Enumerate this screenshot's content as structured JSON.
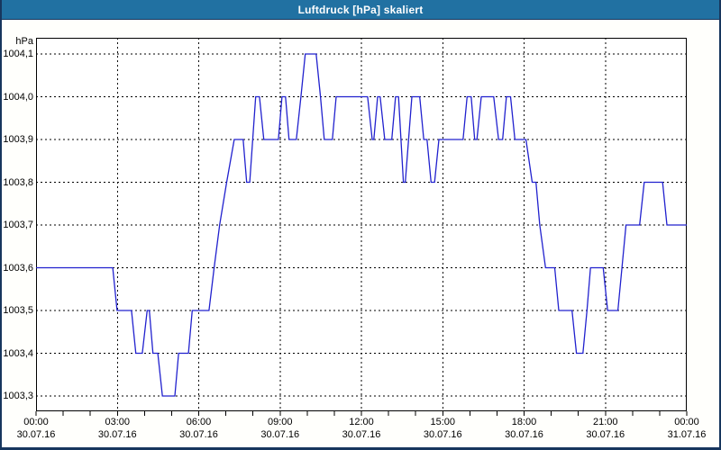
{
  "window": {
    "title": "Luftdruck [hPa] skaliert"
  },
  "colors": {
    "titlebar_bg": "#2171a2",
    "titlebar_text": "#ffffff",
    "window_border": "#17365d",
    "background": "#fffffc",
    "plot_background": "#ffffff",
    "plot_border": "#000000",
    "grid": "#000000",
    "line": "#2121ce",
    "label_text": "#000000"
  },
  "chart_data": {
    "type": "line",
    "title": "Luftdruck [hPa] skaliert",
    "unit_label": "hPa",
    "grid": "dashed",
    "legend": "none",
    "xlim_hours": [
      0,
      24
    ],
    "ylim": [
      1003.264,
      1004.138
    ],
    "y_ticks": [
      {
        "label": "1004,1",
        "value": 1004.1
      },
      {
        "label": "1004,0",
        "value": 1004.0
      },
      {
        "label": "1003,9",
        "value": 1003.9
      },
      {
        "label": "1003,8",
        "value": 1003.8
      },
      {
        "label": "1003,7",
        "value": 1003.7
      },
      {
        "label": "1003,6",
        "value": 1003.6
      },
      {
        "label": "1003,5",
        "value": 1003.5
      },
      {
        "label": "1003,4",
        "value": 1003.4
      },
      {
        "label": "1003,3",
        "value": 1003.3
      }
    ],
    "x_ticks": [
      {
        "time": "00:00",
        "date": "30.07.16",
        "hour": 0
      },
      {
        "time": "03:00",
        "date": "30.07.16",
        "hour": 3
      },
      {
        "time": "06:00",
        "date": "30.07.16",
        "hour": 6
      },
      {
        "time": "09:00",
        "date": "30.07.16",
        "hour": 9
      },
      {
        "time": "12:00",
        "date": "30.07.16",
        "hour": 12
      },
      {
        "time": "15:00",
        "date": "30.07.16",
        "hour": 15
      },
      {
        "time": "18:00",
        "date": "30.07.16",
        "hour": 18
      },
      {
        "time": "21:00",
        "date": "30.07.16",
        "hour": 21
      },
      {
        "time": "00:00",
        "date": "31.07.16",
        "hour": 24
      }
    ],
    "minor_tick_every_hours": 1,
    "gridline_hours": [
      3,
      6,
      9,
      12,
      15,
      18,
      21
    ],
    "series": [
      {
        "name": "Luftdruck",
        "points": [
          [
            0.0,
            1003.6
          ],
          [
            2.83,
            1003.6
          ],
          [
            2.99,
            1003.5
          ],
          [
            3.52,
            1003.5
          ],
          [
            3.68,
            1003.4
          ],
          [
            3.92,
            1003.4
          ],
          [
            4.1,
            1003.5
          ],
          [
            4.18,
            1003.5
          ],
          [
            4.31,
            1003.4
          ],
          [
            4.49,
            1003.4
          ],
          [
            4.66,
            1003.3
          ],
          [
            5.12,
            1003.3
          ],
          [
            5.26,
            1003.4
          ],
          [
            5.62,
            1003.4
          ],
          [
            5.76,
            1003.5
          ],
          [
            6.38,
            1003.5
          ],
          [
            6.57,
            1003.6
          ],
          [
            6.77,
            1003.7
          ],
          [
            7.03,
            1003.8
          ],
          [
            7.31,
            1003.9
          ],
          [
            7.64,
            1003.9
          ],
          [
            7.77,
            1003.8
          ],
          [
            7.88,
            1003.8
          ],
          [
            8.1,
            1004.0
          ],
          [
            8.24,
            1004.0
          ],
          [
            8.4,
            1003.9
          ],
          [
            8.94,
            1003.9
          ],
          [
            9.07,
            1004.0
          ],
          [
            9.2,
            1004.0
          ],
          [
            9.33,
            1003.9
          ],
          [
            9.6,
            1003.9
          ],
          [
            9.77,
            1004.0
          ],
          [
            9.93,
            1004.1
          ],
          [
            10.33,
            1004.1
          ],
          [
            10.49,
            1004.0
          ],
          [
            10.63,
            1003.9
          ],
          [
            10.93,
            1003.9
          ],
          [
            11.07,
            1004.0
          ],
          [
            12.23,
            1004.0
          ],
          [
            12.4,
            1003.9
          ],
          [
            12.46,
            1003.9
          ],
          [
            12.6,
            1004.0
          ],
          [
            12.69,
            1004.0
          ],
          [
            12.86,
            1003.9
          ],
          [
            13.12,
            1003.9
          ],
          [
            13.26,
            1004.0
          ],
          [
            13.37,
            1004.0
          ],
          [
            13.55,
            1003.8
          ],
          [
            13.62,
            1003.8
          ],
          [
            13.86,
            1004.0
          ],
          [
            14.15,
            1004.0
          ],
          [
            14.3,
            1003.9
          ],
          [
            14.42,
            1003.9
          ],
          [
            14.57,
            1003.8
          ],
          [
            14.7,
            1003.8
          ],
          [
            14.86,
            1003.9
          ],
          [
            15.75,
            1003.9
          ],
          [
            15.9,
            1004.0
          ],
          [
            16.05,
            1004.0
          ],
          [
            16.18,
            1003.9
          ],
          [
            16.26,
            1003.9
          ],
          [
            16.42,
            1004.0
          ],
          [
            16.88,
            1004.0
          ],
          [
            17.06,
            1003.9
          ],
          [
            17.21,
            1003.9
          ],
          [
            17.35,
            1004.0
          ],
          [
            17.5,
            1004.0
          ],
          [
            17.66,
            1003.9
          ],
          [
            18.07,
            1003.9
          ],
          [
            18.3,
            1003.8
          ],
          [
            18.44,
            1003.8
          ],
          [
            18.58,
            1003.7
          ],
          [
            18.79,
            1003.6
          ],
          [
            19.13,
            1003.6
          ],
          [
            19.28,
            1003.5
          ],
          [
            19.77,
            1003.5
          ],
          [
            19.93,
            1003.4
          ],
          [
            20.17,
            1003.4
          ],
          [
            20.32,
            1003.5
          ],
          [
            20.45,
            1003.6
          ],
          [
            20.92,
            1003.6
          ],
          [
            21.08,
            1003.5
          ],
          [
            21.46,
            1003.5
          ],
          [
            21.61,
            1003.6
          ],
          [
            21.76,
            1003.7
          ],
          [
            22.26,
            1003.7
          ],
          [
            22.43,
            1003.8
          ],
          [
            23.11,
            1003.8
          ],
          [
            23.27,
            1003.7
          ],
          [
            24.0,
            1003.7
          ]
        ]
      }
    ]
  }
}
